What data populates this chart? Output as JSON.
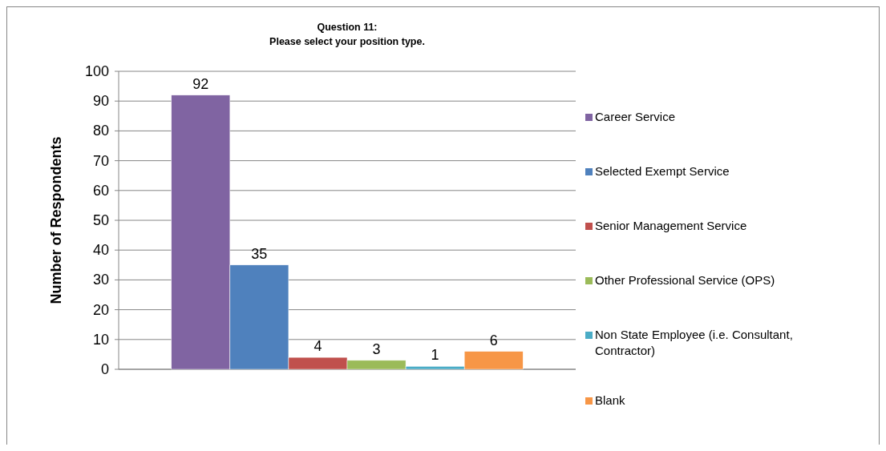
{
  "chart_data": {
    "type": "bar",
    "title": "Question 11:\nPlease select your position type.",
    "ylabel": "Number of Respondents",
    "categories": [
      null
    ],
    "series": [
      {
        "name": "Career Service",
        "color": "#8064a2",
        "values": [
          92
        ]
      },
      {
        "name": "Selected Exempt Service",
        "color": "#4f81bd",
        "values": [
          35
        ]
      },
      {
        "name": "Senior Management Service",
        "color": "#c0504d",
        "values": [
          4
        ]
      },
      {
        "name": "Other Professional Service (OPS)",
        "color": "#9bbb59",
        "values": [
          3
        ]
      },
      {
        "name": "Non State Employee (i.e. Consultant, Contractor)",
        "color": "#4bacc6",
        "values": [
          1
        ]
      },
      {
        "name": "Blank",
        "color": "#f79646",
        "values": [
          6
        ]
      }
    ],
    "ylim": [
      0,
      100
    ],
    "yticks": [
      0,
      10,
      20,
      30,
      40,
      50,
      60,
      70,
      80,
      90,
      100
    ],
    "grid": "y",
    "legend": "right",
    "data_labels": true
  }
}
